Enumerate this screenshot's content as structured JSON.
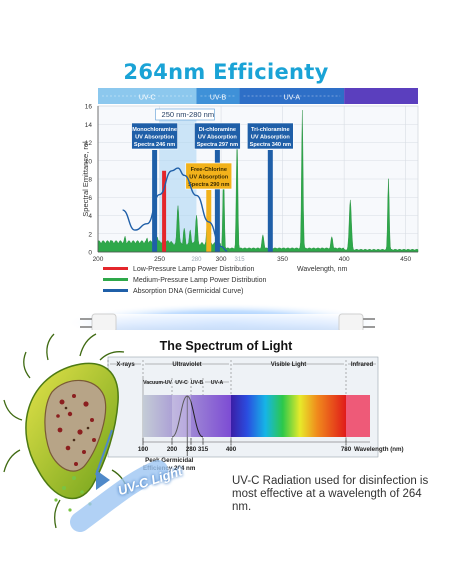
{
  "header": {
    "title": "264nm Efficienty"
  },
  "chart_data": [
    {
      "type": "line",
      "ylabel": "Spectral Emittance, rel",
      "xlabel": "Wavelength, nm",
      "x_ticks": [
        200,
        250,
        300,
        350,
        400,
        450
      ],
      "x_ticks_secondary": [
        280,
        315
      ],
      "y_ticks": [
        0,
        2,
        4,
        6,
        8,
        10,
        12,
        14,
        16
      ],
      "xlim": [
        200,
        460
      ],
      "ylim": [
        0,
        16
      ],
      "bands": [
        {
          "label": "UV-C",
          "from": 200,
          "to": 280
        },
        {
          "label": "UV-B",
          "from": 280,
          "to": 315
        },
        {
          "label": "UV-A",
          "from": 315,
          "to": 400
        }
      ],
      "highlight_range": {
        "label": "250 nm-280 nm",
        "from": 250,
        "to": 280
      },
      "absorption_markers": [
        {
          "nm": 246,
          "lines": [
            "Monochloramine",
            "UV Absorption",
            "Spectra 246 nm"
          ],
          "color": "#1f5fa8"
        },
        {
          "nm": 297,
          "lines": [
            "Di-chloramine",
            "UV Absorption",
            "Spectra 297 nm"
          ],
          "color": "#1f5fa8"
        },
        {
          "nm": 340,
          "lines": [
            "Tri-chloramine",
            "UV Absorption",
            "Spectra 340 nm"
          ],
          "color": "#1f5fa8"
        },
        {
          "nm": 290,
          "lines": [
            "Free-Chlorine",
            "UV Absorption",
            "Spectra 290 nm"
          ],
          "color": "#f2b21b"
        }
      ],
      "series": [
        {
          "name": "Low-Pressure Lamp Power Distribution",
          "color": "#e4262b",
          "x": [
            253.7
          ],
          "y": [
            8.9
          ]
        },
        {
          "name": "Medium-Pressure Lamp Power Distribution",
          "color": "#2ea84a",
          "peaks": [
            {
              "x": 210,
              "y": 1.1
            },
            {
              "x": 222,
              "y": 1.4
            },
            {
              "x": 240,
              "y": 1.3
            },
            {
              "x": 248,
              "y": 1.6
            },
            {
              "x": 254,
              "y": 2.0
            },
            {
              "x": 265,
              "y": 5.0
            },
            {
              "x": 270,
              "y": 2.3
            },
            {
              "x": 275,
              "y": 2.2
            },
            {
              "x": 280,
              "y": 3.8
            },
            {
              "x": 289,
              "y": 3.0
            },
            {
              "x": 297,
              "y": 6.9
            },
            {
              "x": 302,
              "y": 8.8
            },
            {
              "x": 313,
              "y": 12.8
            },
            {
              "x": 334,
              "y": 1.8
            },
            {
              "x": 366,
              "y": 15.5
            },
            {
              "x": 390,
              "y": 1.6
            },
            {
              "x": 405,
              "y": 5.7
            },
            {
              "x": 436,
              "y": 8.0
            }
          ]
        },
        {
          "name": "Absorption DNA (Germicidal Curve)",
          "color": "#1f5fa8",
          "x": [
            220,
            230,
            240,
            250,
            260,
            265,
            270,
            280,
            290,
            300,
            305
          ],
          "y": [
            4.6,
            2.4,
            3.1,
            6.3,
            8.9,
            9.2,
            8.4,
            6.2,
            3.3,
            0.6,
            0.1
          ]
        }
      ]
    },
    {
      "type": "bar",
      "title": "The Spectrum of Light",
      "xlabel": "Wavelength (nm)",
      "x_ticks": [
        100,
        200,
        280,
        315,
        400,
        780
      ],
      "regions": [
        {
          "label": "X-rays",
          "from": 0,
          "to": 100
        },
        {
          "label": "Ultraviolet",
          "from": 100,
          "to": 400
        },
        {
          "label": "Vacuum-UV",
          "from": 100,
          "to": 200
        },
        {
          "label": "UV-C",
          "from": 200,
          "to": 280
        },
        {
          "label": "UV-B",
          "from": 280,
          "to": 315
        },
        {
          "label": "UV-A",
          "from": 315,
          "to": 400
        },
        {
          "label": "Visible Light",
          "from": 400,
          "to": 780
        },
        {
          "label": "Infrared",
          "from": 780,
          "to": 900
        }
      ],
      "annotation": {
        "lines": [
          "Peak Germicidal",
          "Efficiency 264 nm"
        ],
        "nm": 264
      }
    }
  ],
  "diagram": {
    "uvc_label": "UV-C Light",
    "caption": "UV-C Radiation used for disinfection is most effective at a wavelength of 264 nm."
  },
  "colors": {
    "title": "#1aa3d6",
    "band_uvc": "#8cc8ee",
    "band_uvb": "#3f91d8",
    "band_uva": "#2e6fc7",
    "highlight": "#f2b21b"
  }
}
